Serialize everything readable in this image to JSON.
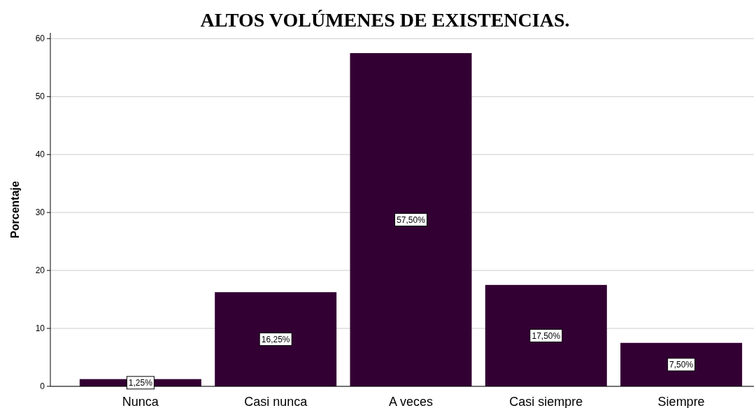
{
  "chart_data": {
    "type": "bar",
    "title": "ALTOS VOLÚMENES DE EXISTENCIAS.",
    "ylabel": "Porcentaje",
    "categories": [
      "Nunca",
      "Casi nunca",
      "A veces",
      "Casi siempre",
      "Siempre"
    ],
    "values": [
      1.25,
      16.25,
      57.5,
      17.5,
      7.5
    ],
    "value_labels": [
      "1,25%",
      "16,25%",
      "57,50%",
      "17,50%",
      "7,50%"
    ],
    "color": "#330033",
    "ylim": [
      0,
      61
    ],
    "yticks": [
      0,
      10,
      20,
      30,
      40,
      50,
      60
    ],
    "grid": "y"
  }
}
